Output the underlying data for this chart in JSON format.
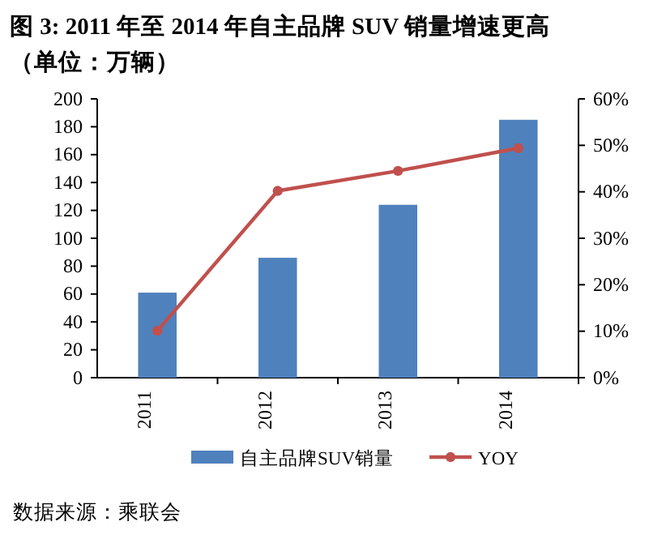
{
  "chart_data": {
    "type": "bar",
    "title": "图 3: 2011 年至 2014 年自主品牌 SUV 销量增速更高（单位：万辆）",
    "categories": [
      "2011",
      "2012",
      "2013",
      "2014"
    ],
    "series": [
      {
        "name": "自主品牌SUV销量",
        "color": "#4f81bd",
        "values": [
          61,
          86,
          124,
          185
        ]
      },
      {
        "name": "YOY",
        "type": "line",
        "axis": "y2",
        "color": "#c0504d",
        "marker": "circle",
        "values": [
          10.1,
          40.2,
          44.5,
          49.4
        ]
      }
    ],
    "ylim": [
      0,
      200
    ],
    "yticks": [
      0,
      20,
      40,
      60,
      80,
      100,
      120,
      140,
      160,
      180,
      200
    ],
    "y2lim": [
      0,
      60
    ],
    "y2ticks": [
      {
        "value": 0,
        "label": "0%"
      },
      {
        "value": 10,
        "label": "10%"
      },
      {
        "value": 20,
        "label": "20%"
      },
      {
        "value": 30,
        "label": "30%"
      },
      {
        "value": 40,
        "label": "40%"
      },
      {
        "value": 50,
        "label": "50%"
      },
      {
        "value": 60,
        "label": "60%"
      }
    ],
    "legend": "bottom",
    "grid": false,
    "annotations": [
      "数据来源：乘联会"
    ]
  }
}
